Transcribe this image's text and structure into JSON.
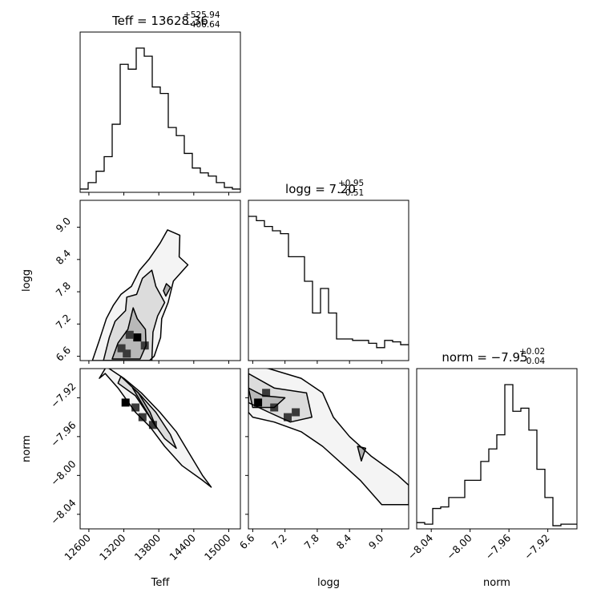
{
  "chart_data": {
    "type": "corner",
    "parameters": [
      "Teff",
      "logg",
      "norm"
    ],
    "titles": [
      {
        "param": "Teff",
        "prefix": "Teff = ",
        "value": "13628.36",
        "upper": "+525.94",
        "lower": "−406.64"
      },
      {
        "param": "logg",
        "prefix": "logg = ",
        "value": "7.20",
        "upper": "+0.95",
        "lower": "−0.51"
      },
      {
        "param": "norm",
        "prefix": "norm = ",
        "value": "−7.95",
        "upper": "+0.02",
        "lower": "−0.04"
      }
    ],
    "axes": {
      "Teff": {
        "range": [
          12450,
          15200
        ],
        "ticks": [
          12600,
          13200,
          13800,
          14400,
          15000
        ],
        "tick_labels": [
          "12600",
          "13200",
          "13800",
          "14400",
          "15000"
        ]
      },
      "logg": {
        "range": [
          6.52,
          9.5
        ],
        "ticks": [
          6.6,
          7.2,
          7.8,
          8.4,
          9.0
        ],
        "tick_labels": [
          "6.6",
          "7.2",
          "7.8",
          "8.4",
          "9.0"
        ]
      },
      "norm": {
        "range": [
          -8.055,
          -7.89
        ],
        "ticks": [
          -8.04,
          -8.0,
          -7.96,
          -7.92
        ],
        "tick_labels": [
          "−8.04",
          "−8.00",
          "−7.96",
          "−7.92"
        ]
      }
    },
    "histograms": {
      "Teff": {
        "bins": 20,
        "counts": [
          2,
          6,
          13,
          22,
          42,
          79,
          76,
          89,
          84,
          65,
          61,
          40,
          35,
          24,
          15,
          12,
          10,
          6,
          3,
          2
        ]
      },
      "logg": {
        "bins": 20,
        "counts": [
          100,
          97,
          93,
          90,
          88,
          72,
          72,
          55,
          33,
          50,
          33,
          15,
          15,
          14,
          14,
          12,
          9,
          14,
          13,
          11
        ]
      },
      "norm": {
        "bins": 20,
        "counts": [
          4,
          3,
          13,
          14,
          20,
          20,
          31,
          31,
          43,
          51,
          60,
          92,
          75,
          77,
          63,
          38,
          20,
          2,
          3,
          3
        ]
      }
    },
    "contours": {
      "Teff_logg": {
        "levels": [
          [
            [
              12660,
              6.52
            ],
            [
              12780,
              6.9
            ],
            [
              12900,
              7.3
            ],
            [
              13020,
              7.55
            ],
            [
              13150,
              7.75
            ],
            [
              13330,
              7.9
            ],
            [
              13470,
              8.2
            ],
            [
              13630,
              8.4
            ],
            [
              13820,
              8.7
            ],
            [
              13950,
              8.95
            ],
            [
              14160,
              8.85
            ],
            [
              14150,
              8.45
            ],
            [
              14300,
              8.3
            ],
            [
              14050,
              8.0
            ],
            [
              13960,
              7.6
            ],
            [
              13850,
              7.3
            ],
            [
              13830,
              6.95
            ],
            [
              13720,
              6.6
            ],
            [
              13640,
              6.52
            ]
          ],
          [
            [
              12850,
              6.52
            ],
            [
              12950,
              6.95
            ],
            [
              13050,
              7.25
            ],
            [
              13230,
              7.45
            ],
            [
              13250,
              7.7
            ],
            [
              13420,
              7.75
            ],
            [
              13520,
              8.05
            ],
            [
              13680,
              8.2
            ],
            [
              13750,
              7.9
            ],
            [
              13900,
              7.6
            ],
            [
              13780,
              7.35
            ],
            [
              13700,
              7.05
            ],
            [
              13680,
              6.52
            ]
          ],
          [
            [
              13000,
              6.55
            ],
            [
              13100,
              6.85
            ],
            [
              13270,
              7.1
            ],
            [
              13360,
              7.5
            ],
            [
              13430,
              7.3
            ],
            [
              13570,
              7.1
            ],
            [
              13580,
              6.8
            ],
            [
              13480,
              6.55
            ]
          ],
          [
            [
              13880,
              7.82
            ],
            [
              13930,
              7.95
            ],
            [
              14000,
              7.88
            ],
            [
              13920,
              7.72
            ]
          ]
        ],
        "hist2d_peak": [
          [
            13430,
            6.95
          ],
          [
            13560,
            6.8
          ],
          [
            13250,
            6.65
          ],
          [
            13300,
            7.0
          ],
          [
            13160,
            6.75
          ]
        ]
      },
      "Teff_norm": {
        "levels": [
          [
            [
              12780,
              -7.9
            ],
            [
              12880,
              -7.895
            ],
            [
              13100,
              -7.91
            ],
            [
              13400,
              -7.935
            ],
            [
              13650,
              -7.95
            ],
            [
              13900,
              -7.97
            ],
            [
              14200,
              -7.99
            ],
            [
              14550,
              -8.005
            ],
            [
              14700,
              -8.012
            ],
            [
              14550,
              -8.0
            ],
            [
              14350,
              -7.98
            ],
            [
              14100,
              -7.955
            ],
            [
              13820,
              -7.935
            ],
            [
              13500,
              -7.915
            ],
            [
              13200,
              -7.9
            ],
            [
              12900,
              -7.888
            ]
          ],
          [
            [
              13100,
              -7.905
            ],
            [
              13400,
              -7.918
            ],
            [
              13700,
              -7.945
            ],
            [
              13900,
              -7.962
            ],
            [
              14100,
              -7.972
            ],
            [
              14000,
              -7.958
            ],
            [
              13750,
              -7.935
            ],
            [
              13450,
              -7.915
            ],
            [
              13150,
              -7.898
            ]
          ],
          [
            [
              13350,
              -7.91
            ],
            [
              13550,
              -7.93
            ],
            [
              13750,
              -7.95
            ],
            [
              13650,
              -7.935
            ],
            [
              13450,
              -7.915
            ]
          ]
        ],
        "hist2d_peak": [
          [
            13230,
            -7.925
          ],
          [
            13520,
            -7.94
          ],
          [
            13400,
            -7.93
          ],
          [
            13700,
            -7.948
          ]
        ]
      },
      "logg_norm": {
        "levels": [
          [
            [
              6.52,
              -7.885
            ],
            [
              6.9,
              -7.89
            ],
            [
              7.5,
              -7.9
            ],
            [
              7.9,
              -7.915
            ],
            [
              8.1,
              -7.94
            ],
            [
              8.4,
              -7.96
            ],
            [
              8.8,
              -7.98
            ],
            [
              9.3,
              -8.0
            ],
            [
              9.5,
              -8.01
            ],
            [
              9.5,
              -8.03
            ],
            [
              9.0,
              -8.03
            ],
            [
              8.6,
              -8.005
            ],
            [
              8.3,
              -7.99
            ],
            [
              7.9,
              -7.97
            ],
            [
              7.5,
              -7.955
            ],
            [
              7.0,
              -7.945
            ],
            [
              6.6,
              -7.94
            ],
            [
              6.52,
              -7.935
            ]
          ],
          [
            [
              6.52,
              -7.895
            ],
            [
              7.0,
              -7.91
            ],
            [
              7.6,
              -7.915
            ],
            [
              7.7,
              -7.94
            ],
            [
              7.3,
              -7.945
            ],
            [
              6.9,
              -7.935
            ],
            [
              6.52,
              -7.925
            ]
          ],
          [
            [
              6.52,
              -7.91
            ],
            [
              6.8,
              -7.918
            ],
            [
              7.2,
              -7.92
            ],
            [
              7.0,
              -7.93
            ],
            [
              6.6,
              -7.93
            ]
          ],
          [
            [
              8.55,
              -7.97
            ],
            [
              8.62,
              -7.985
            ],
            [
              8.7,
              -7.972
            ]
          ]
        ],
        "hist2d_peak": [
          [
            6.7,
            -7.925
          ],
          [
            7.0,
            -7.93
          ],
          [
            7.25,
            -7.94
          ],
          [
            6.85,
            -7.915
          ],
          [
            7.4,
            -7.935
          ]
        ]
      }
    },
    "colors": {
      "line": "#000000",
      "background": "#ffffff",
      "peak": "#000000"
    }
  }
}
